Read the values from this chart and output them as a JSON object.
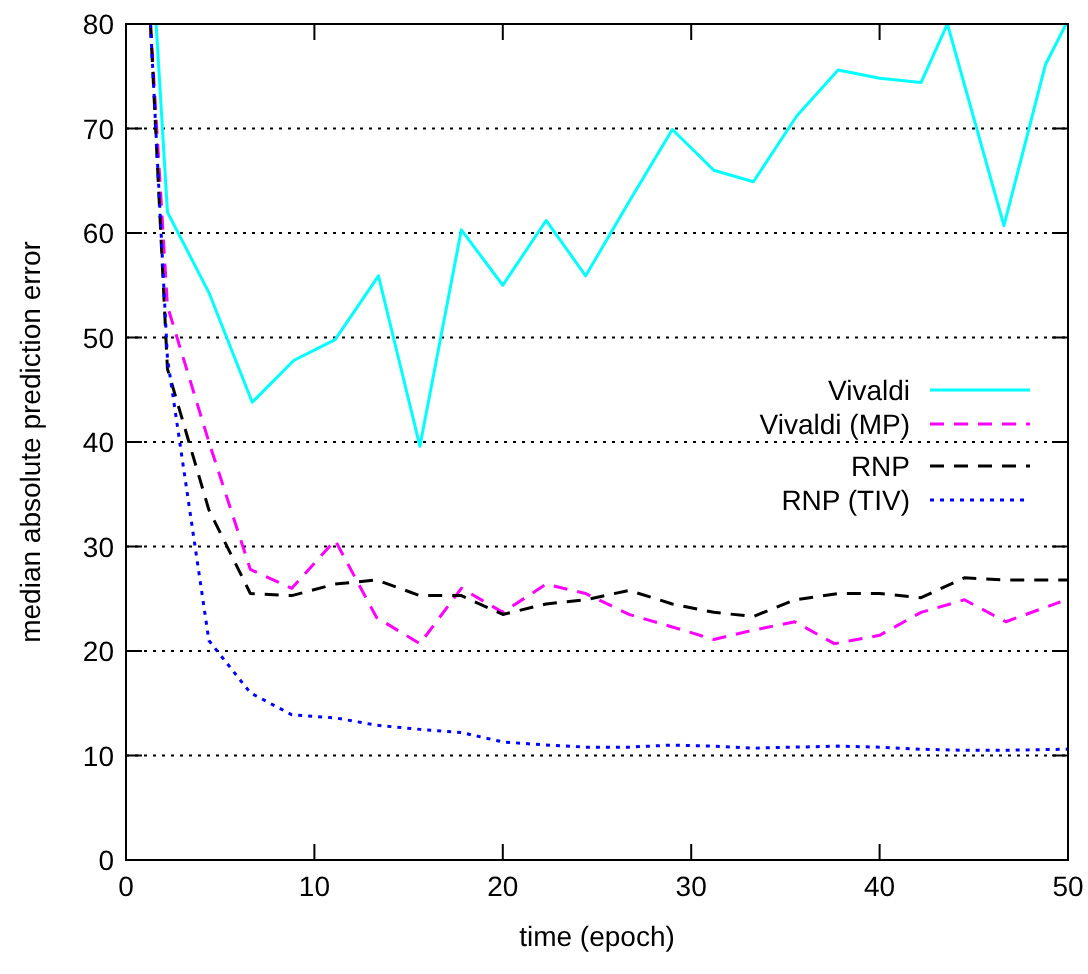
{
  "chart_data": {
    "type": "line",
    "xlabel": "time (epoch)",
    "ylabel": "median absolute prediction error",
    "xlim": [
      0,
      50
    ],
    "ylim": [
      0,
      80
    ],
    "xticks": [
      0,
      10,
      20,
      30,
      40,
      50
    ],
    "yticks": [
      0,
      10,
      20,
      30,
      40,
      50,
      60,
      70,
      80
    ],
    "grid": "y",
    "legend": "right",
    "series": [
      {
        "name": "Vivaldi",
        "color": "#00ffff",
        "line_style": "solid",
        "x": [
          1.6,
          2.2,
          4.4,
          6.7,
          8.9,
          11.1,
          13.4,
          15.6,
          17.8,
          20,
          22.3,
          24.4,
          26.7,
          29,
          31.2,
          33.3,
          35.6,
          37.8,
          40,
          42.2,
          43.6,
          46.6,
          48.8,
          49.9
        ],
        "values": [
          80,
          62,
          54.3,
          43.8,
          47.8,
          49.8,
          55.9,
          39.6,
          60.3,
          55,
          61.2,
          55.9,
          63,
          69.9,
          66,
          64.9,
          71.2,
          75.6,
          74.8,
          74.4,
          80,
          60.7,
          76.1,
          80
        ]
      },
      {
        "name": "Vivaldi (MP)",
        "color": "#ff00ff",
        "line_style": "dashed",
        "x": [
          1.3,
          2.2,
          4.4,
          6.6,
          8.8,
          11.1,
          13.3,
          15.6,
          17.8,
          20,
          22.3,
          24.4,
          26.7,
          29,
          31.2,
          33.3,
          35.5,
          37.6,
          40,
          42.2,
          44.5,
          46.7,
          49.6
        ],
        "values": [
          80,
          53,
          40,
          27.8,
          26,
          30.6,
          23.2,
          20.7,
          26,
          23.7,
          26.4,
          25.5,
          23.5,
          22.3,
          21.1,
          22,
          22.8,
          20.7,
          21.5,
          23.7,
          24.9,
          22.8,
          24.7
        ]
      },
      {
        "name": "RNP",
        "color": "#000000",
        "line_style": "dashed",
        "x": [
          1.3,
          2.2,
          4.4,
          6.6,
          8.8,
          11.1,
          13.3,
          15.6,
          17.8,
          20,
          22.3,
          24.4,
          26.7,
          29,
          31.2,
          33.3,
          35.5,
          37.8,
          40,
          42.2,
          44.5,
          46.7,
          50
        ],
        "values": [
          80,
          47,
          33.5,
          25.5,
          25.3,
          26.4,
          26.8,
          25.3,
          25.3,
          23.5,
          24.5,
          24.9,
          25.8,
          24.5,
          23.7,
          23.3,
          24.9,
          25.5,
          25.5,
          25.1,
          27,
          26.8,
          26.8
        ]
      },
      {
        "name": "RNP (TIV)",
        "color": "#0000ff",
        "line_style": "dotted",
        "x": [
          1.3,
          2.2,
          4.4,
          6.6,
          8.8,
          11.1,
          13.3,
          15.6,
          17.8,
          20,
          22.3,
          24.4,
          26.7,
          29,
          31.2,
          33.3,
          35.5,
          37.8,
          40,
          42.2,
          44.5,
          46.7,
          50
        ],
        "values": [
          80,
          48,
          21,
          16,
          13.9,
          13.6,
          12.9,
          12.5,
          12.2,
          11.3,
          11,
          10.8,
          10.8,
          11,
          10.9,
          10.7,
          10.8,
          10.9,
          10.8,
          10.6,
          10.5,
          10.5,
          10.6
        ]
      }
    ]
  }
}
